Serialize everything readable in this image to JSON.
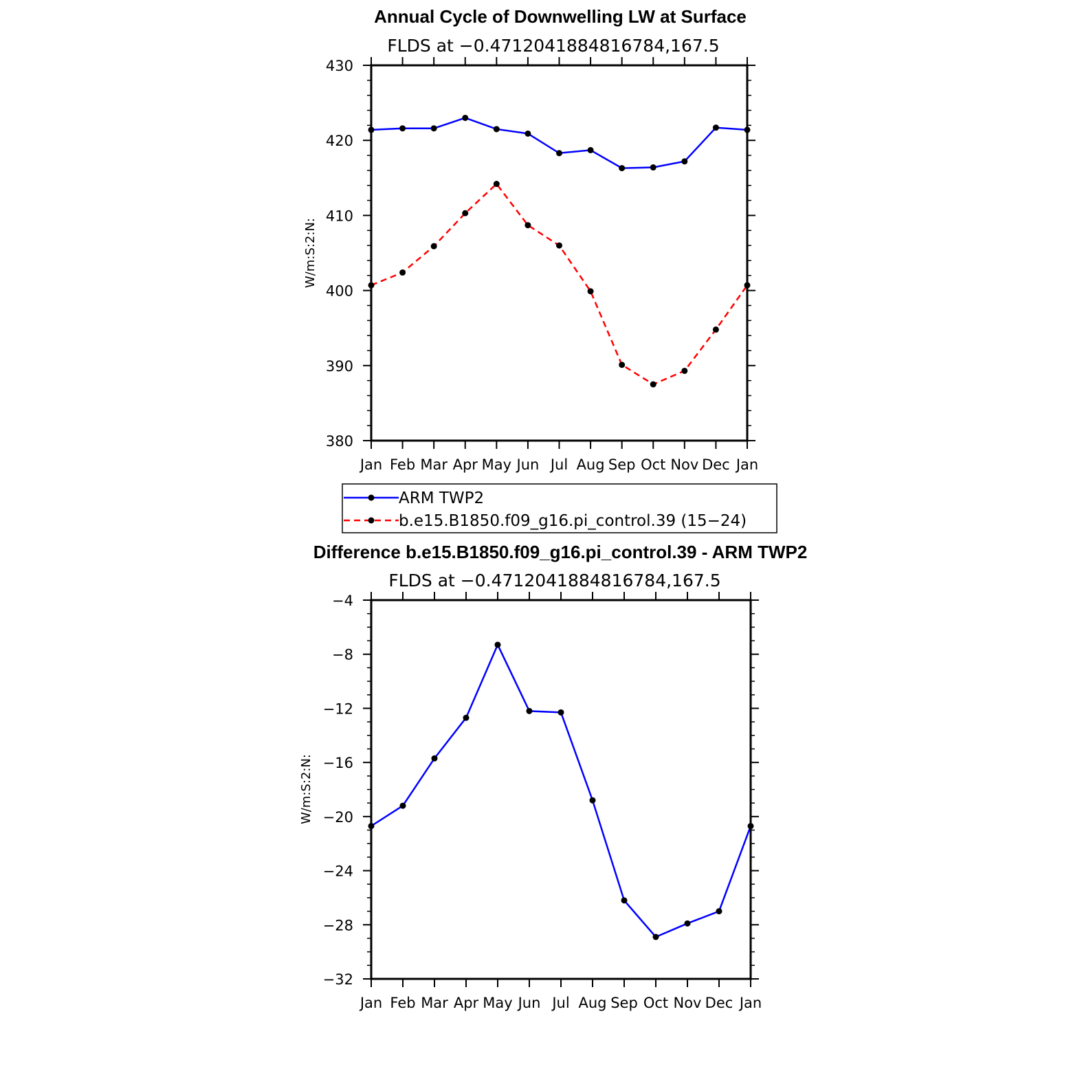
{
  "colors": {
    "series1": "#0000ff",
    "series2": "#ff0000",
    "marker": "#000000",
    "axis": "#000000"
  },
  "chart_data": [
    {
      "type": "line",
      "title": "Annual Cycle of Downwelling LW at Surface",
      "subtitle": "FLDS at −0.4712041884816784,167.5",
      "ylabel": "W/m:S:2:N:",
      "xlabel": "",
      "categories": [
        "Jan",
        "Feb",
        "Mar",
        "Apr",
        "May",
        "Jun",
        "Jul",
        "Aug",
        "Sep",
        "Oct",
        "Nov",
        "Dec",
        "Jan"
      ],
      "ylim": [
        380,
        430
      ],
      "yticks": [
        "430",
        "420",
        "410",
        "400",
        "390",
        "380"
      ],
      "ytick_values": [
        430,
        420,
        410,
        400,
        390,
        380
      ],
      "series": [
        {
          "name": "ARM TWP2",
          "style": "solid",
          "values": [
            421.4,
            421.6,
            421.6,
            423.0,
            421.5,
            420.9,
            418.3,
            418.7,
            416.3,
            416.4,
            417.2,
            421.7,
            421.4
          ]
        },
        {
          "name": "b.e15.B1850.f09_g16.pi_control.39 (15−24)",
          "style": "dashed",
          "values": [
            400.7,
            402.4,
            405.9,
            410.3,
            414.2,
            408.7,
            406.0,
            399.9,
            390.1,
            387.5,
            389.3,
            394.8,
            400.7
          ]
        }
      ],
      "legend_position": "below"
    },
    {
      "type": "line",
      "title": "Difference b.e15.B1850.f09_g16.pi_control.39 - ARM TWP2",
      "subtitle": "FLDS at −0.4712041884816784,167.5",
      "ylabel": "W/m:S:2:N:",
      "xlabel": "",
      "categories": [
        "Jan",
        "Feb",
        "Mar",
        "Apr",
        "May",
        "Jun",
        "Jul",
        "Aug",
        "Sep",
        "Oct",
        "Nov",
        "Dec",
        "Jan"
      ],
      "ylim": [
        -32,
        -4
      ],
      "yticks": [
        "−4",
        "−8",
        "−12",
        "−16",
        "−20",
        "−24",
        "−28",
        "−32"
      ],
      "ytick_values": [
        -4,
        -8,
        -12,
        -16,
        -20,
        -24,
        -28,
        -32
      ],
      "series": [
        {
          "style": "solid",
          "values": [
            -20.7,
            -19.2,
            -15.7,
            -12.7,
            -7.3,
            -12.2,
            -12.3,
            -18.8,
            -26.2,
            -28.9,
            -27.9,
            -27.0,
            -20.7
          ]
        }
      ]
    }
  ]
}
